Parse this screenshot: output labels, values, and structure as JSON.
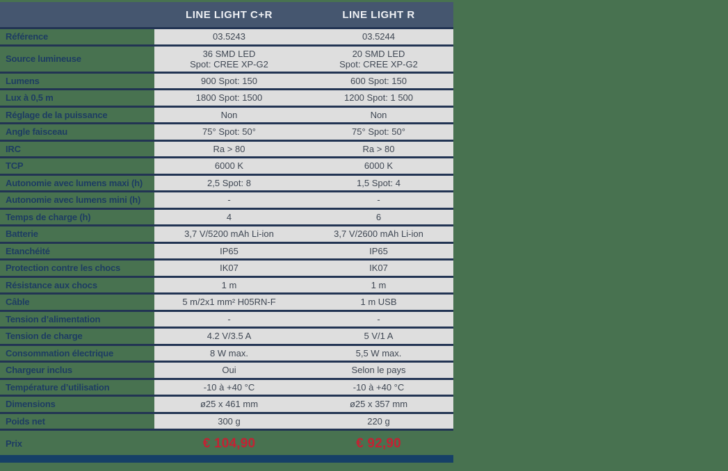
{
  "colors": {
    "page_green": "#487250",
    "header_slate": "#45566f",
    "separator_navy": "#223453",
    "cell_gray": "#dedede",
    "label_navy": "#1d3c62",
    "value_gray": "#3f4753",
    "price_red": "#c32233",
    "bottom_bar_blue": "#164067"
  },
  "table": {
    "header": {
      "product1": "LINE LIGHT C+R",
      "product2": "LINE LIGHT R"
    },
    "rows": [
      {
        "label": "Référence",
        "v1": "03.5243",
        "v2": "03.5244"
      },
      {
        "label": "Source lumineuse",
        "v1": "36 SMD LED\nSpot: CREE XP-G2",
        "v2": "20 SMD LED\nSpot: CREE XP-G2",
        "tall": true
      },
      {
        "label": "Lumens",
        "v1": "900 Spot: 150",
        "v2": "600 Spot: 150"
      },
      {
        "label": "Lux à 0,5 m",
        "v1": "1800 Spot: 1500",
        "v2": "1200 Spot: 1 500"
      },
      {
        "label": "Réglage de la puissance",
        "v1": "Non",
        "v2": "Non"
      },
      {
        "label": "Angle faisceau",
        "v1": "75° Spot: 50°",
        "v2": "75° Spot: 50°"
      },
      {
        "label": "IRC",
        "v1": "Ra > 80",
        "v2": "Ra > 80"
      },
      {
        "label": "TCP",
        "v1": "6000 K",
        "v2": "6000 K"
      },
      {
        "label": "Autonomie avec lumens maxi (h)",
        "v1": "2,5 Spot: 8",
        "v2": "1,5 Spot: 4"
      },
      {
        "label": "Autonomie avec lumens mini (h)",
        "v1": "-",
        "v2": "-"
      },
      {
        "label": "Temps de charge (h)",
        "v1": "4",
        "v2": "6"
      },
      {
        "label": "Batterie",
        "v1": "3,7 V/5200 mAh Li-ion",
        "v2": "3,7 V/2600 mAh Li-ion"
      },
      {
        "label": "Etanchéité",
        "v1": "IP65",
        "v2": "IP65"
      },
      {
        "label": "Protection contre les chocs",
        "v1": "IK07",
        "v2": "IK07"
      },
      {
        "label": "Résistance aux chocs",
        "v1": "1 m",
        "v2": "1 m"
      },
      {
        "label": "Câble",
        "v1": "5 m/2x1 mm² H05RN-F",
        "v2": "1 m USB"
      },
      {
        "label": "Tension d’alimentation",
        "v1": "-",
        "v2": "-"
      },
      {
        "label": "Tension de charge",
        "v1": "4.2 V/3.5 A",
        "v2": "5 V/1 A"
      },
      {
        "label": "Consommation électrique",
        "v1": "8 W max.",
        "v2": "5,5 W max."
      },
      {
        "label": "Chargeur inclus",
        "v1": "Oui",
        "v2": "Selon le pays"
      },
      {
        "label": "Température d’utilisation",
        "v1": "-10 à +40 °C",
        "v2": "-10 à +40 °C"
      },
      {
        "label": "Dimensions",
        "v1": "ø25 x 461 mm",
        "v2": "ø25 x 357 mm"
      },
      {
        "label": "Poids net",
        "v1": "300 g",
        "v2": "220 g"
      }
    ],
    "price_row": {
      "label": "Prix",
      "v1": "€ 104,90",
      "v2": "€ 92,90"
    }
  }
}
